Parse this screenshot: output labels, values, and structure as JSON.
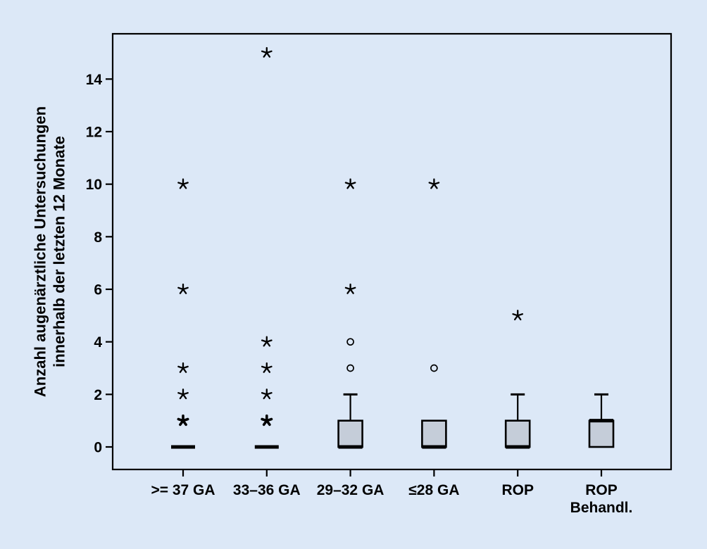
{
  "figure": {
    "background": "#dce8f7",
    "plot_background": "#dce8f7",
    "frame_color": "#000000",
    "box_fill": "#c5cdd9",
    "box_stroke": "#000000",
    "marker_color": "#000000"
  },
  "chart_data": {
    "type": "boxplot",
    "title": "",
    "xlabel": "",
    "ylabel_lines": [
      "Anzahl augenärztliche Untersuchungen",
      "innerhalb der letzten 12 Monate"
    ],
    "yticks": [
      0,
      2,
      4,
      6,
      8,
      10,
      12,
      14
    ],
    "ylim": [
      -0.86,
      15.72
    ],
    "grid": false,
    "legend_position": "none",
    "categories": [
      {
        "label_lines": [
          ">= 37 GA"
        ],
        "q1": 0,
        "median": 0,
        "q3": 0,
        "whisker_low": 0,
        "whisker_high": 0,
        "outliers": [
          {
            "value": 10,
            "marker": "star"
          },
          {
            "value": 6,
            "marker": "star"
          },
          {
            "value": 3,
            "marker": "star"
          },
          {
            "value": 2,
            "marker": "star"
          },
          {
            "value": 1,
            "marker": "star-bold"
          }
        ]
      },
      {
        "label_lines": [
          "33–36 GA"
        ],
        "q1": 0,
        "median": 0,
        "q3": 0,
        "whisker_low": 0,
        "whisker_high": 0,
        "outliers": [
          {
            "value": 15,
            "marker": "star"
          },
          {
            "value": 4,
            "marker": "star"
          },
          {
            "value": 3,
            "marker": "star"
          },
          {
            "value": 2,
            "marker": "star"
          },
          {
            "value": 1,
            "marker": "star-bold"
          }
        ]
      },
      {
        "label_lines": [
          "29–32 GA"
        ],
        "q1": 0,
        "median": 0,
        "q3": 1,
        "whisker_low": 0,
        "whisker_high": 2,
        "outliers": [
          {
            "value": 10,
            "marker": "star"
          },
          {
            "value": 6,
            "marker": "star"
          },
          {
            "value": 4,
            "marker": "circle"
          },
          {
            "value": 3,
            "marker": "circle"
          }
        ]
      },
      {
        "label_lines": [
          "≤28 GA"
        ],
        "q1": 0,
        "median": 0,
        "q3": 1,
        "whisker_low": 0,
        "whisker_high": 1,
        "outliers": [
          {
            "value": 10,
            "marker": "star"
          },
          {
            "value": 3,
            "marker": "circle"
          }
        ]
      },
      {
        "label_lines": [
          "ROP"
        ],
        "q1": 0,
        "median": 0,
        "q3": 1,
        "whisker_low": 0,
        "whisker_high": 2,
        "outliers": [
          {
            "value": 5,
            "marker": "star"
          }
        ]
      },
      {
        "label_lines": [
          "ROP",
          "Behandl."
        ],
        "q1": 0,
        "median": 1,
        "q3": 1,
        "whisker_low": 0,
        "whisker_high": 2,
        "outliers": []
      }
    ]
  }
}
